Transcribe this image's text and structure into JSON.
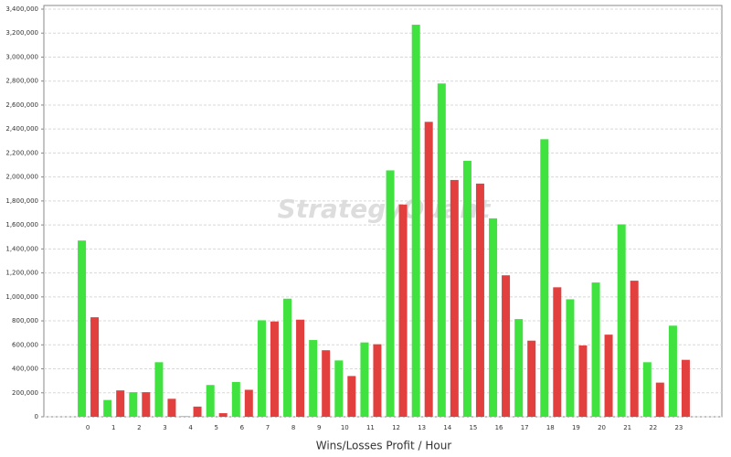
{
  "chart_data": {
    "type": "bar",
    "x_label": "Wins/Losses Profit / Hour",
    "watermark": "StrategyQuant",
    "categories": [
      "0",
      "1",
      "2",
      "3",
      "4",
      "5",
      "6",
      "7",
      "8",
      "9",
      "10",
      "11",
      "12",
      "13",
      "14",
      "15",
      "16",
      "17",
      "18",
      "19",
      "20",
      "21",
      "22",
      "23"
    ],
    "series": [
      {
        "color": "#3fe23f",
        "values": [
          1470000,
          140000,
          205000,
          455000,
          5000,
          265000,
          290000,
          805000,
          985000,
          640000,
          470000,
          620000,
          2055000,
          3270000,
          2780000,
          2135000,
          1655000,
          815000,
          2315000,
          980000,
          1120000,
          1605000,
          455000,
          760000
        ]
      },
      {
        "color": "#e23f3f",
        "values": [
          830000,
          220000,
          205000,
          150000,
          85000,
          30000,
          225000,
          795000,
          810000,
          555000,
          340000,
          605000,
          1770000,
          2460000,
          1975000,
          1945000,
          1180000,
          635000,
          1080000,
          595000,
          685000,
          1135000,
          285000,
          475000
        ]
      }
    ],
    "ylim": [
      0,
      3400000
    ],
    "yticks": [
      {
        "value": 0,
        "label": "0"
      },
      {
        "value": 200000,
        "label": "200,000"
      },
      {
        "value": 400000,
        "label": "400,000"
      },
      {
        "value": 600000,
        "label": "600,000"
      },
      {
        "value": 800000,
        "label": "800,000"
      },
      {
        "value": 1000000,
        "label": "1,000,000"
      },
      {
        "value": 1200000,
        "label": "1,200,000"
      },
      {
        "value": 1400000,
        "label": "1,400,000"
      },
      {
        "value": 1600000,
        "label": "1,600,000"
      },
      {
        "value": 1800000,
        "label": "1,800,000"
      },
      {
        "value": 2000000,
        "label": "2,000,000"
      },
      {
        "value": 2200000,
        "label": "2,200,000"
      },
      {
        "value": 2400000,
        "label": "2,400,000"
      },
      {
        "value": 2600000,
        "label": "2,600,000"
      },
      {
        "value": 2800000,
        "label": "2,800,000"
      },
      {
        "value": 3000000,
        "label": "3,000,000"
      },
      {
        "value": 3200000,
        "label": "3,200,000"
      },
      {
        "value": 3400000,
        "label": "3,400,000"
      }
    ],
    "grid": true
  }
}
